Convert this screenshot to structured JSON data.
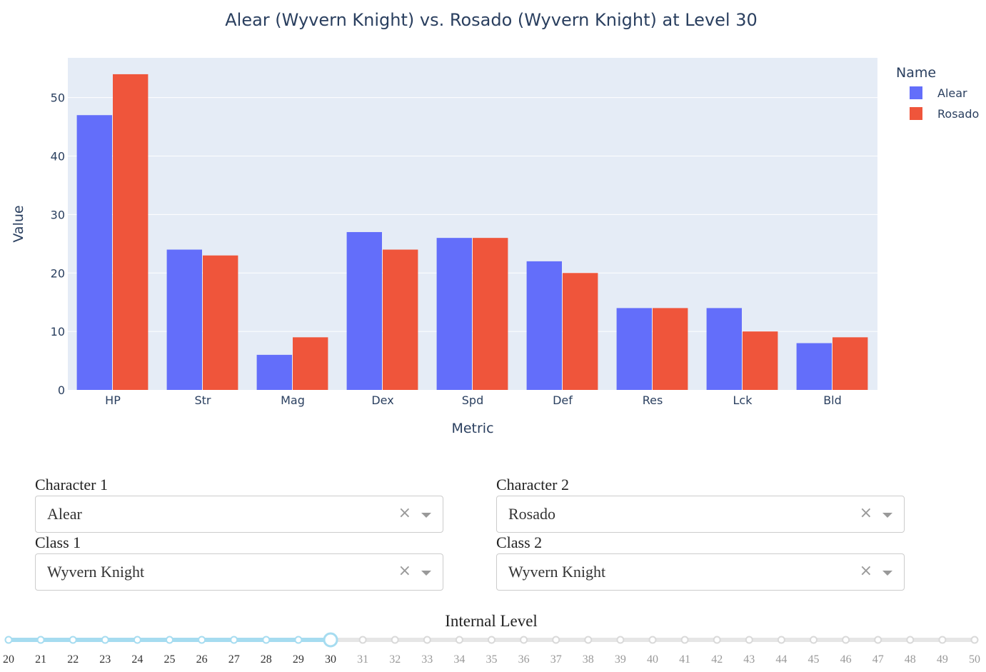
{
  "colors": {
    "alear": "#636efa",
    "rosado": "#ef553b",
    "plot_bg": "#e5ecf6",
    "axis_text": "#2a3f5f",
    "slider_active": "#a6dcf0",
    "slider_track": "#e6e6e6"
  },
  "chart_data": {
    "type": "bar",
    "title": "Alear (Wyvern Knight) vs. Rosado (Wyvern Knight) at Level 30",
    "xlabel": "Metric",
    "ylabel": "Value",
    "ylim": [
      0,
      56.8
    ],
    "yticks": [
      0,
      10,
      20,
      30,
      40,
      50
    ],
    "categories": [
      "HP",
      "Str",
      "Mag",
      "Dex",
      "Spd",
      "Def",
      "Res",
      "Lck",
      "Bld"
    ],
    "legend_title": "Name",
    "legend_position": "top-right",
    "grid": true,
    "series": [
      {
        "name": "Alear",
        "values": [
          47,
          24,
          6,
          27,
          26,
          22,
          14,
          14,
          8
        ]
      },
      {
        "name": "Rosado",
        "values": [
          54,
          23,
          9,
          24,
          26,
          20,
          14,
          10,
          9
        ]
      }
    ]
  },
  "controls": {
    "character1_label": "Character 1",
    "character1_value": "Alear",
    "character2_label": "Character 2",
    "character2_value": "Rosado",
    "class1_label": "Class 1",
    "class1_value": "Wyvern Knight",
    "class2_label": "Class 2",
    "class2_value": "Wyvern Knight",
    "clear_symbol": "×"
  },
  "slider": {
    "label": "Internal Level",
    "min": 20,
    "max": 50,
    "value": 30,
    "marks": [
      "20",
      "21",
      "22",
      "23",
      "24",
      "25",
      "26",
      "27",
      "28",
      "29",
      "30",
      "31",
      "32",
      "33",
      "34",
      "35",
      "36",
      "37",
      "38",
      "39",
      "40",
      "41",
      "42",
      "43",
      "44",
      "45",
      "46",
      "47",
      "48",
      "49",
      "50"
    ]
  }
}
